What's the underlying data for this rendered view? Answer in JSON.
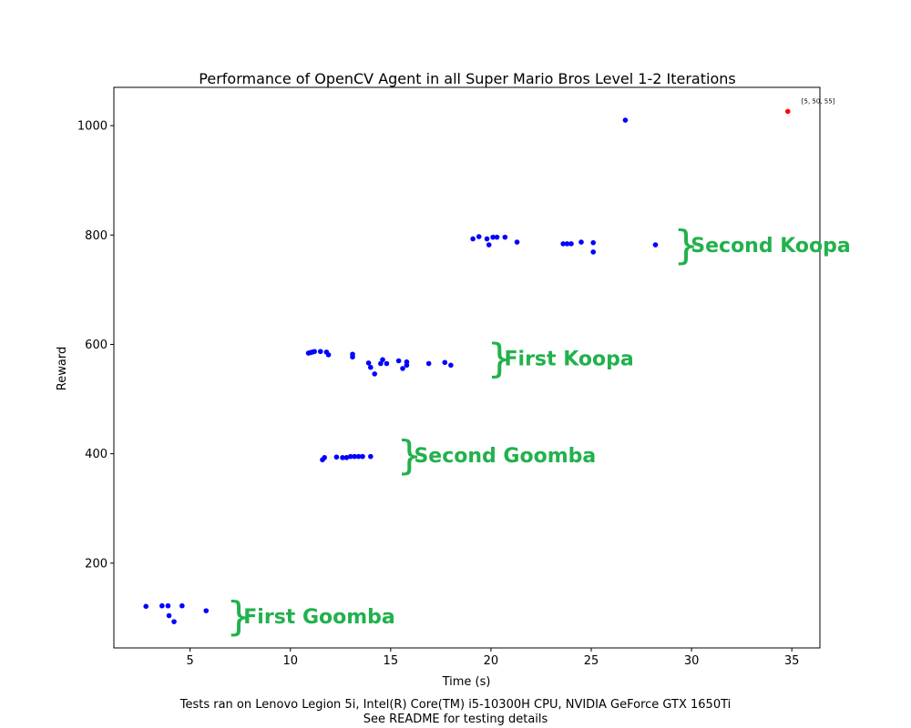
{
  "colors": {
    "series": "#0000ff",
    "highlight": "#ff0000",
    "annotation": "#22b14c",
    "axis": "#000000"
  },
  "chart_data": {
    "type": "scatter",
    "title": "Performance of OpenCV Agent in all Super Mario Bros Level 1-2 Iterations",
    "xlabel": "Time (s)",
    "ylabel": "Reward",
    "xlim": [
      1.2,
      36.4
    ],
    "ylim": [
      45,
      1070
    ],
    "xticks": [
      5,
      10,
      15,
      20,
      25,
      30,
      35
    ],
    "yticks": [
      200,
      400,
      600,
      800,
      1000
    ],
    "grid": false,
    "series": [
      {
        "color": "#0000ff",
        "points": [
          [
            2.8,
            121
          ],
          [
            3.6,
            122
          ],
          [
            3.9,
            122
          ],
          [
            4.6,
            122
          ],
          [
            3.95,
            104
          ],
          [
            4.2,
            93
          ],
          [
            5.8,
            113
          ],
          [
            11.6,
            389
          ],
          [
            11.7,
            393
          ],
          [
            12.3,
            394
          ],
          [
            12.6,
            393
          ],
          [
            12.8,
            393
          ],
          [
            13.0,
            395
          ],
          [
            13.2,
            395
          ],
          [
            13.4,
            395
          ],
          [
            13.6,
            395
          ],
          [
            14.0,
            395
          ],
          [
            10.9,
            584
          ],
          [
            11.0,
            585
          ],
          [
            11.1,
            586
          ],
          [
            11.2,
            587
          ],
          [
            11.5,
            587
          ],
          [
            11.8,
            586
          ],
          [
            11.9,
            581
          ],
          [
            13.1,
            582
          ],
          [
            13.1,
            577
          ],
          [
            13.9,
            566
          ],
          [
            14.0,
            558
          ],
          [
            14.2,
            546
          ],
          [
            14.5,
            565
          ],
          [
            14.6,
            572
          ],
          [
            14.8,
            565
          ],
          [
            15.4,
            570
          ],
          [
            15.6,
            556
          ],
          [
            15.8,
            568
          ],
          [
            15.8,
            562
          ],
          [
            16.9,
            565
          ],
          [
            17.7,
            567
          ],
          [
            18.0,
            562
          ],
          [
            19.1,
            793
          ],
          [
            19.4,
            797
          ],
          [
            19.8,
            793
          ],
          [
            19.9,
            782
          ],
          [
            20.1,
            796
          ],
          [
            20.3,
            796
          ],
          [
            20.7,
            796
          ],
          [
            21.3,
            787
          ],
          [
            23.6,
            784
          ],
          [
            23.8,
            784
          ],
          [
            24.0,
            784
          ],
          [
            24.5,
            787
          ],
          [
            25.1,
            786
          ],
          [
            25.1,
            769
          ],
          [
            28.2,
            782
          ],
          [
            26.7,
            1010
          ]
        ]
      },
      {
        "color": "#ff0000",
        "points": [
          [
            34.8,
            1026
          ]
        ]
      }
    ],
    "annotations": {
      "point_label": {
        "text": "[5, 50, 55]",
        "x": 34.8,
        "y": 1026
      },
      "groups": [
        {
          "label": "First Goomba",
          "x": 6.8,
          "y": 103
        },
        {
          "label": "Second Goomba",
          "x": 15.3,
          "y": 398
        },
        {
          "label": "First Koopa",
          "x": 19.8,
          "y": 575
        },
        {
          "label": "Second Koopa",
          "x": 29.1,
          "y": 782
        }
      ]
    }
  },
  "caption": {
    "line1": "Tests ran on Lenovo Legion 5i, Intel(R) Core(TM) i5-10300H CPU, NVIDIA GeForce GTX 1650Ti",
    "line2": "See README for testing details"
  }
}
